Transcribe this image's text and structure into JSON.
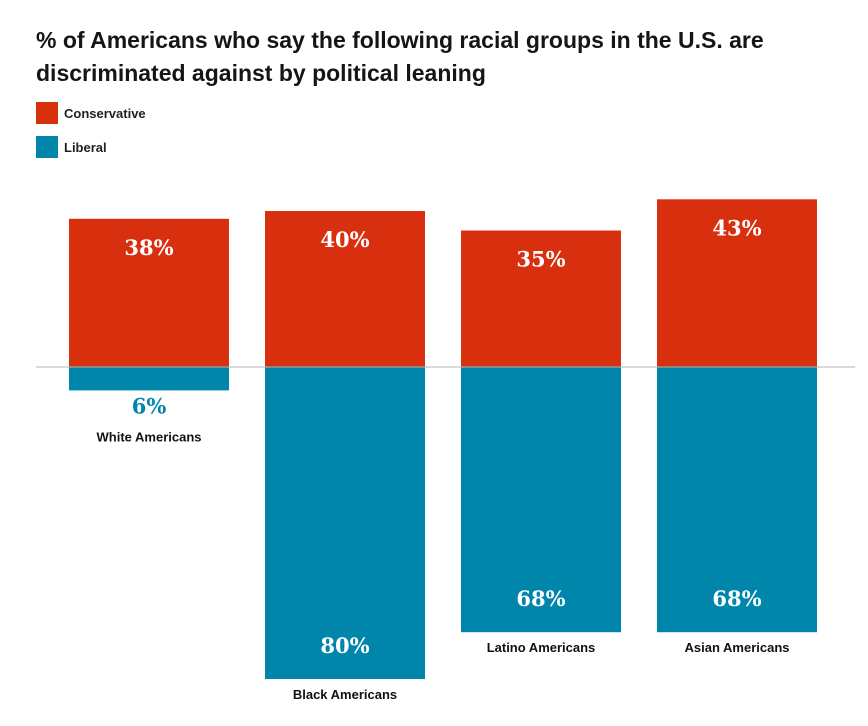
{
  "colors": {
    "conservative": "#d8300f",
    "liberal": "#0086ab",
    "axis": "#b5b5b5",
    "text": "#111111"
  },
  "chart_data": {
    "type": "bar",
    "layout": "diverging",
    "title": "% of Americans who say the following racial groups in the U.S. are discriminated against by political leaning",
    "categories": [
      "White Americans",
      "Black Americans",
      "Latino Americans",
      "Asian Americans"
    ],
    "series": [
      {
        "name": "Conservative",
        "direction": "up",
        "values": [
          38,
          40,
          35,
          43
        ],
        "labels": [
          "38%",
          "40%",
          "35%",
          "43%"
        ]
      },
      {
        "name": "Liberal",
        "direction": "down",
        "values": [
          6,
          80,
          68,
          68
        ],
        "labels": [
          "6%",
          "80%",
          "68%",
          "68%"
        ]
      }
    ],
    "legend": {
      "position": "top-left",
      "entries": [
        "Conservative",
        "Liberal"
      ]
    },
    "xlabel": "",
    "ylabel": "",
    "grid": false
  }
}
